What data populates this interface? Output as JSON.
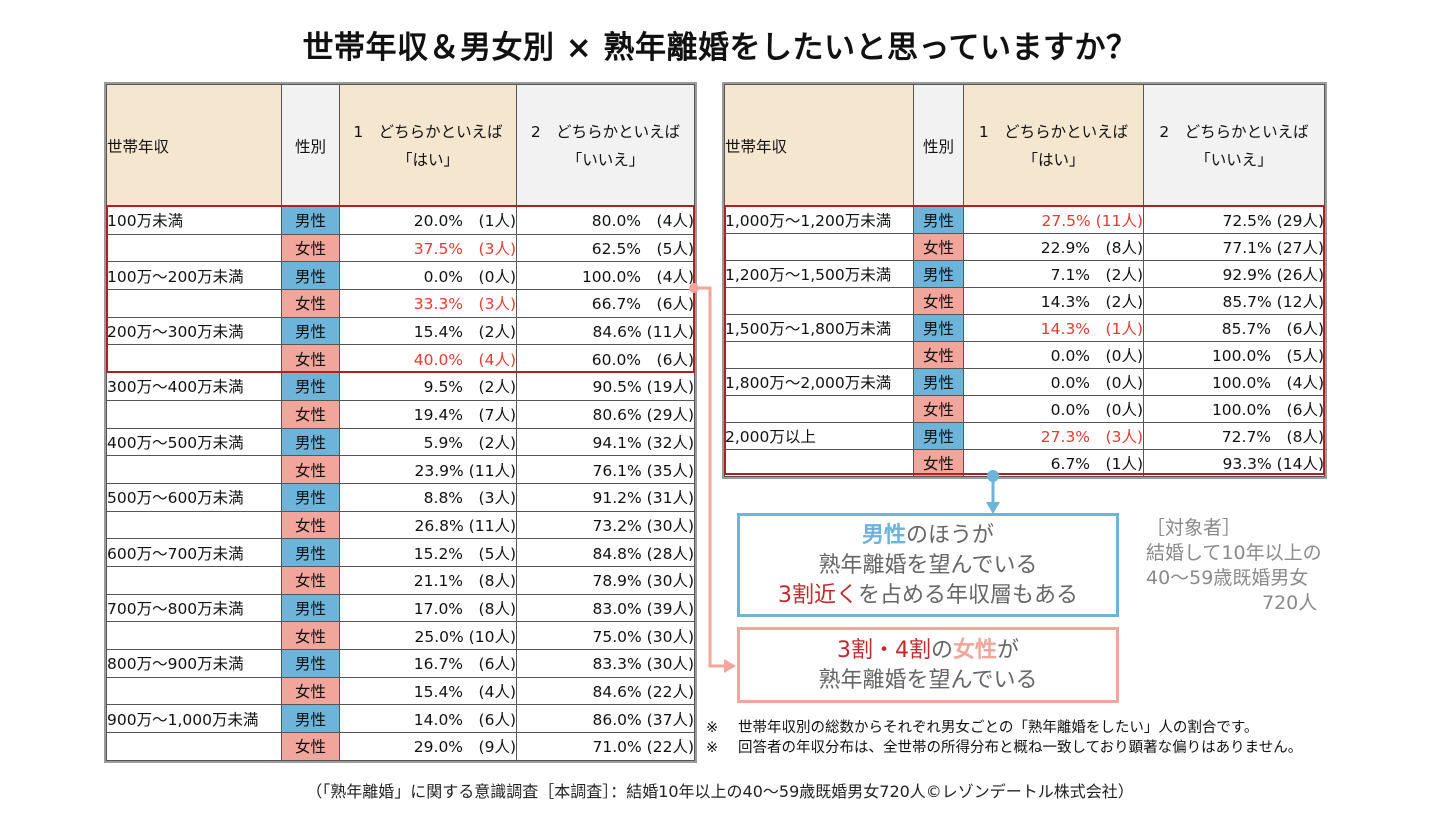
{
  "title": "世帯年収＆男女別 × 熟年離婚をしたいと思っていますか？",
  "headers": {
    "income": "世帯年収",
    "gender": "性別",
    "yes_line1": "1　どちらかといえば",
    "yes_line2": "「はい」",
    "no_line1": "2　どちらかといえば",
    "no_line2": "「いいえ」"
  },
  "gender_labels": {
    "male": "男性",
    "female": "女性"
  },
  "colors": {
    "male": "#6cb4d9",
    "female": "#f2a59a",
    "highlight": "#e53a2f",
    "outline": "#b02020",
    "header_yes": "#f5e7cf",
    "header_no": "#f2f2f2"
  },
  "left_table": [
    {
      "income": "100万未満",
      "gender": "男性",
      "yes": "20.0%　(1人)",
      "no": "80.0%　(4人)",
      "highlight": false
    },
    {
      "income": "",
      "gender": "女性",
      "yes": "37.5%　(3人)",
      "no": "62.5%　(5人)",
      "highlight": true
    },
    {
      "income": "100万～200万未満",
      "gender": "男性",
      "yes": "0.0%　(0人)",
      "no": "100.0%　(4人)",
      "highlight": false
    },
    {
      "income": "",
      "gender": "女性",
      "yes": "33.3%　(3人)",
      "no": "66.7%　(6人)",
      "highlight": true
    },
    {
      "income": "200万～300万未満",
      "gender": "男性",
      "yes": "15.4%　(2人)",
      "no": "84.6% (11人)",
      "highlight": false
    },
    {
      "income": "",
      "gender": "女性",
      "yes": "40.0%　(4人)",
      "no": "60.0%　(6人)",
      "highlight": true
    },
    {
      "income": "300万～400万未満",
      "gender": "男性",
      "yes": "9.5%　(2人)",
      "no": "90.5% (19人)",
      "highlight": false
    },
    {
      "income": "",
      "gender": "女性",
      "yes": "19.4%　(7人)",
      "no": "80.6% (29人)",
      "highlight": false
    },
    {
      "income": "400万～500万未満",
      "gender": "男性",
      "yes": "5.9%　(2人)",
      "no": "94.1% (32人)",
      "highlight": false
    },
    {
      "income": "",
      "gender": "女性",
      "yes": "23.9% (11人)",
      "no": "76.1% (35人)",
      "highlight": false
    },
    {
      "income": "500万～600万未満",
      "gender": "男性",
      "yes": "8.8%　(3人)",
      "no": "91.2% (31人)",
      "highlight": false
    },
    {
      "income": "",
      "gender": "女性",
      "yes": "26.8% (11人)",
      "no": "73.2% (30人)",
      "highlight": false
    },
    {
      "income": "600万～700万未満",
      "gender": "男性",
      "yes": "15.2%　(5人)",
      "no": "84.8% (28人)",
      "highlight": false
    },
    {
      "income": "",
      "gender": "女性",
      "yes": "21.1%　(8人)",
      "no": "78.9% (30人)",
      "highlight": false
    },
    {
      "income": "700万～800万未満",
      "gender": "男性",
      "yes": "17.0%　(8人)",
      "no": "83.0% (39人)",
      "highlight": false
    },
    {
      "income": "",
      "gender": "女性",
      "yes": "25.0% (10人)",
      "no": "75.0% (30人)",
      "highlight": false
    },
    {
      "income": "800万～900万未満",
      "gender": "男性",
      "yes": "16.7%　(6人)",
      "no": "83.3% (30人)",
      "highlight": false
    },
    {
      "income": "",
      "gender": "女性",
      "yes": "15.4%　(4人)",
      "no": "84.6% (22人)",
      "highlight": false
    },
    {
      "income": "900万～1,000万未満",
      "gender": "男性",
      "yes": "14.0%　(6人)",
      "no": "86.0% (37人)",
      "highlight": false
    },
    {
      "income": "",
      "gender": "女性",
      "yes": "29.0%　(9人)",
      "no": "71.0% (22人)",
      "highlight": false
    }
  ],
  "right_table": [
    {
      "income": "1,000万～1,200万未満",
      "gender": "男性",
      "yes": "27.5% (11人)",
      "no": "72.5% (29人)",
      "highlight": true
    },
    {
      "income": "",
      "gender": "女性",
      "yes": "22.9%　(8人)",
      "no": "77.1% (27人)",
      "highlight": false
    },
    {
      "income": "1,200万～1,500万未満",
      "gender": "男性",
      "yes": "7.1%　(2人)",
      "no": "92.9% (26人)",
      "highlight": false
    },
    {
      "income": "",
      "gender": "女性",
      "yes": "14.3%　(2人)",
      "no": "85.7% (12人)",
      "highlight": false
    },
    {
      "income": "1,500万～1,800万未満",
      "gender": "男性",
      "yes": "14.3%　(1人)",
      "no": "85.7%　(6人)",
      "highlight": true
    },
    {
      "income": "",
      "gender": "女性",
      "yes": "0.0%　(0人)",
      "no": "100.0%　(5人)",
      "highlight": false
    },
    {
      "income": "1,800万～2,000万未満",
      "gender": "男性",
      "yes": "0.0%　(0人)",
      "no": "100.0%　(4人)",
      "highlight": false
    },
    {
      "income": "",
      "gender": "女性",
      "yes": "0.0%　(0人)",
      "no": "100.0%　(6人)",
      "highlight": false
    },
    {
      "income": "2,000万以上",
      "gender": "男性",
      "yes": "27.3%　(3人)",
      "no": "72.7%　(8人)",
      "highlight": true
    },
    {
      "income": "",
      "gender": "女性",
      "yes": "6.7%　(1人)",
      "no": "93.3% (14人)",
      "highlight": false
    }
  ],
  "callout_male": {
    "line1_em": "男性",
    "line1_rest": "のほうが",
    "line2": "熟年離婚を望んでいる",
    "line3_em": "3割近く",
    "line3_rest": "を占める年収層もある"
  },
  "callout_female": {
    "line1_em": "3割・4割",
    "line1_mid": "の",
    "line1_em2": "女性",
    "line1_rest": "が",
    "line2": "熟年離婚を望んでいる"
  },
  "target": {
    "label": "［対象者］",
    "line1": "結婚して10年以上の",
    "line2": "40～59歳既婚男女",
    "line3": "720人"
  },
  "notes": [
    {
      "mark": "※",
      "text": "世帯年収別の総数からそれぞれ男女ごとの「熟年離婚をしたい」人の割合です。"
    },
    {
      "mark": "※",
      "text": "回答者の年収分布は、全世帯の所得分布と概ね一致しており顕著な偏りはありません。"
    }
  ],
  "source": "（「熟年離婚」に関する意識調査［本調査］：結婚10年以上の40～59歳既婚男女720人©レゾンデートル株式会社）"
}
